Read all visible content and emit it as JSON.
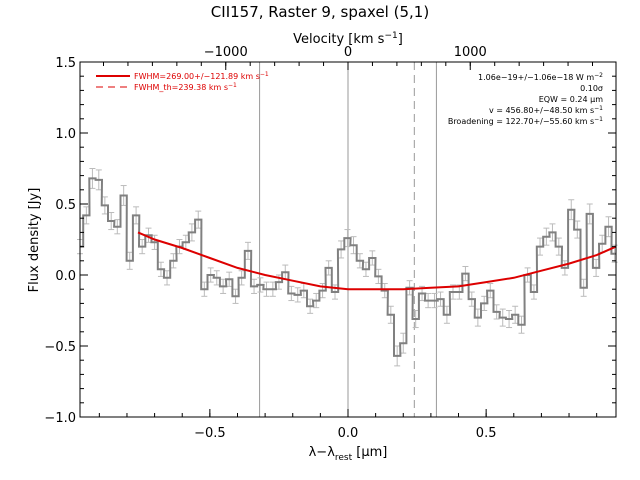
{
  "chart_data": {
    "type": "line",
    "title": "CII157, Raster 9, spaxel (5,1)",
    "xlabel": "λ−λ",
    "xlabel_sub": "rest",
    "xlabel_unit": " [μm]",
    "ylabel": "Flux density [Jy]",
    "top_axis_label": "Velocity [km s",
    "top_axis_label_sup": "−1",
    "top_axis_label_end": "]",
    "xlim": [
      -0.97,
      0.97
    ],
    "ylim": [
      -1.0,
      1.5
    ],
    "velocity_per_um": 2260,
    "x_ticks": [
      {
        "v": -0.5,
        "label": "−0.5"
      },
      {
        "v": 0.0,
        "label": "0.0"
      },
      {
        "v": 0.5,
        "label": "0.5"
      }
    ],
    "y_ticks": [
      {
        "v": -1.0,
        "label": "−1.0"
      },
      {
        "v": -0.5,
        "label": "−0.5"
      },
      {
        "v": 0.0,
        "label": "0.0"
      },
      {
        "v": 0.5,
        "label": "0.5"
      },
      {
        "v": 1.0,
        "label": "1.0"
      },
      {
        "v": 1.5,
        "label": "1.5"
      }
    ],
    "top_ticks": [
      {
        "v": -1000,
        "label": "−1000"
      },
      {
        "v": 0,
        "label": "0"
      },
      {
        "v": 1000,
        "label": "1000"
      }
    ],
    "vlines_solid": [
      -0.32,
      0.0,
      0.32
    ],
    "vline_dashed": 0.24,
    "legend": [
      {
        "label": "FWHM=269.00+/−121.89 km s",
        "sup": "−1",
        "style": "solid",
        "color": "#dd0000"
      },
      {
        "label": "FWHM_th=239.38 km s",
        "sup": "−1",
        "style": "dashed",
        "color": "#dd0000"
      }
    ],
    "annotations": [
      {
        "text": "1.06e−19+/−1.06e−18 W m",
        "sup": "−2"
      },
      {
        "text": "0.10σ",
        "sup": ""
      },
      {
        "text": "EQW = 0.24 μm",
        "sup": ""
      },
      {
        "text": "v = 456.80+/−48.50 km s",
        "sup": "−1"
      },
      {
        "text": "Broadening = 122.70+/−55.60 km s",
        "sup": "−1"
      }
    ],
    "series": [
      {
        "style": "step",
        "color": "#808080",
        "x": [
          -0.97,
          -0.947,
          -0.925,
          -0.902,
          -0.88,
          -0.857,
          -0.835,
          -0.812,
          -0.79,
          -0.767,
          -0.745,
          -0.722,
          -0.7,
          -0.677,
          -0.655,
          -0.632,
          -0.61,
          -0.587,
          -0.565,
          -0.542,
          -0.52,
          -0.497,
          -0.475,
          -0.452,
          -0.43,
          -0.407,
          -0.385,
          -0.362,
          -0.34,
          -0.317,
          -0.295,
          -0.272,
          -0.25,
          -0.227,
          -0.205,
          -0.182,
          -0.16,
          -0.137,
          -0.115,
          -0.092,
          -0.07,
          -0.047,
          -0.025,
          -0.002,
          0.02,
          0.043,
          0.065,
          0.088,
          0.11,
          0.133,
          0.155,
          0.178,
          0.2,
          0.223,
          0.245,
          0.268,
          0.29,
          0.313,
          0.335,
          0.358,
          0.38,
          0.403,
          0.425,
          0.448,
          0.47,
          0.493,
          0.515,
          0.538,
          0.56,
          0.583,
          0.605,
          0.628,
          0.65,
          0.673,
          0.695,
          0.718,
          0.74,
          0.763,
          0.785,
          0.808,
          0.83,
          0.853,
          0.875,
          0.898,
          0.92,
          0.943,
          0.965
        ],
        "values": [
          0.2,
          0.42,
          0.68,
          0.67,
          0.49,
          0.38,
          0.34,
          0.56,
          0.1,
          0.42,
          0.2,
          0.28,
          0.23,
          0.04,
          -0.02,
          0.1,
          0.2,
          0.23,
          0.3,
          0.39,
          -0.1,
          0.0,
          -0.02,
          -0.08,
          -0.03,
          -0.15,
          -0.02,
          0.17,
          -0.08,
          -0.07,
          -0.1,
          -0.1,
          -0.05,
          0.02,
          -0.13,
          -0.14,
          -0.11,
          -0.22,
          -0.18,
          -0.11,
          0.05,
          -0.12,
          0.18,
          0.26,
          0.21,
          0.1,
          0.04,
          0.12,
          -0.01,
          -0.11,
          -0.28,
          -0.57,
          -0.48,
          -0.09,
          -0.31,
          -0.13,
          -0.18,
          -0.18,
          -0.17,
          -0.28,
          -0.12,
          -0.12,
          0.01,
          -0.17,
          -0.3,
          -0.2,
          -0.11,
          -0.26,
          -0.3,
          -0.31,
          -0.28,
          -0.35,
          0.0,
          -0.12,
          0.2,
          0.27,
          0.3,
          0.2,
          0.05,
          0.46,
          0.32,
          -0.09,
          0.43,
          0.05,
          0.22,
          0.34,
          0.15
        ],
        "errors": [
          0.05,
          0.06,
          0.07,
          0.07,
          0.06,
          0.06,
          0.05,
          0.07,
          0.06,
          0.06,
          0.05,
          0.05,
          0.05,
          0.05,
          0.05,
          0.05,
          0.05,
          0.05,
          0.06,
          0.06,
          0.05,
          0.05,
          0.05,
          0.05,
          0.05,
          0.05,
          0.05,
          0.06,
          0.05,
          0.05,
          0.05,
          0.05,
          0.05,
          0.05,
          0.05,
          0.05,
          0.05,
          0.05,
          0.05,
          0.05,
          0.05,
          0.05,
          0.06,
          0.06,
          0.06,
          0.05,
          0.05,
          0.05,
          0.05,
          0.05,
          0.06,
          0.07,
          0.07,
          0.05,
          0.06,
          0.05,
          0.05,
          0.05,
          0.05,
          0.06,
          0.05,
          0.05,
          0.05,
          0.05,
          0.06,
          0.05,
          0.05,
          0.05,
          0.06,
          0.06,
          0.06,
          0.06,
          0.05,
          0.05,
          0.06,
          0.06,
          0.06,
          0.06,
          0.05,
          0.07,
          0.06,
          0.06,
          0.07,
          0.06,
          0.06,
          0.07,
          0.06
        ]
      },
      {
        "style": "line",
        "color": "#dd0000",
        "x": [
          -0.76,
          -0.7,
          -0.6,
          -0.5,
          -0.4,
          -0.3,
          -0.2,
          -0.1,
          0.0,
          0.1,
          0.2,
          0.3,
          0.4,
          0.5,
          0.6,
          0.7,
          0.8,
          0.9,
          0.97
        ],
        "values": [
          0.3,
          0.25,
          0.19,
          0.12,
          0.05,
          0.0,
          -0.04,
          -0.08,
          -0.1,
          -0.1,
          -0.1,
          -0.09,
          -0.08,
          -0.05,
          -0.02,
          0.03,
          0.08,
          0.14,
          0.2
        ]
      }
    ]
  }
}
